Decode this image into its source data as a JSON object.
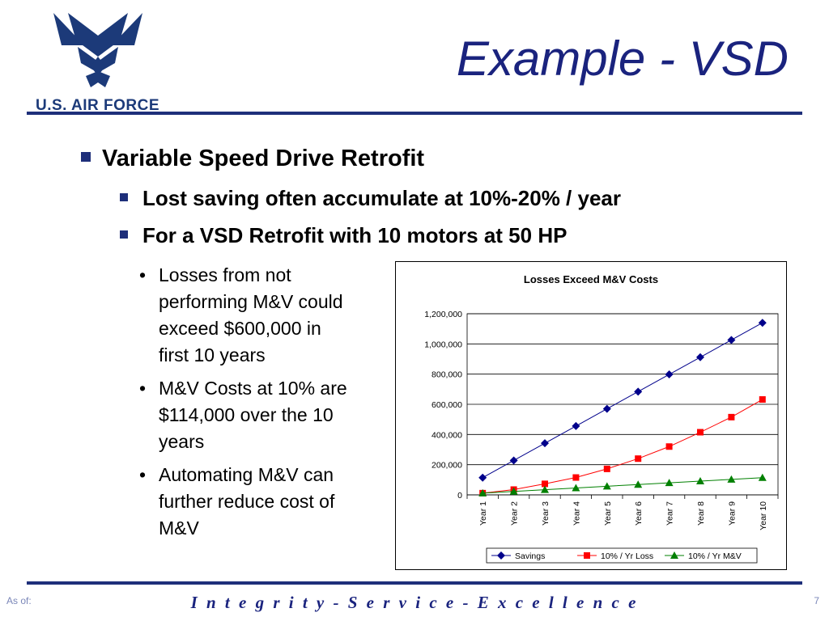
{
  "slide": {
    "logo_text": "U.S. AIR FORCE",
    "title": "Example - VSD",
    "bullet_main": "Variable Speed Drive Retrofit",
    "sub_bullets": [
      "Lost saving often accumulate at 10%-20% / year",
      "For a VSD Retrofit with 10 motors at 50 HP"
    ],
    "points": [
      "Losses from not performing M&V could exceed $600,000 in first 10 years",
      "M&V Costs at 10% are $114,000 over the 10 years",
      "Automating M&V can further reduce cost of M&V"
    ],
    "footer_left": "As of:",
    "footer_motto": "I n t e g r i t y  -  S e r v i c e  -  E x c e l l e n c e",
    "page_number": "7"
  },
  "colors": {
    "brand_blue": "#1e2f7a",
    "savings": "#00008b",
    "loss": "#ff0000",
    "mv": "#008000"
  },
  "chart_data": {
    "type": "line",
    "title": "Losses Exceed M&V Costs",
    "categories": [
      "Year 1",
      "Year 2",
      "Year 3",
      "Year 4",
      "Year 5",
      "Year 6",
      "Year 7",
      "Year 8",
      "Year 9",
      "Year 10"
    ],
    "series": [
      {
        "name": "Savings",
        "marker": "diamond",
        "color": "#00008b",
        "values": [
          114000,
          228000,
          342000,
          456000,
          570000,
          684000,
          798000,
          912000,
          1026000,
          1140000
        ]
      },
      {
        "name": "10% / Yr Loss",
        "marker": "square",
        "color": "#ff0000",
        "values": [
          11400,
          35000,
          73000,
          115000,
          172000,
          240000,
          320000,
          415000,
          515000,
          632000
        ]
      },
      {
        "name": "10% / Yr M&V",
        "marker": "triangle",
        "color": "#008000",
        "values": [
          11400,
          22800,
          34200,
          45600,
          57000,
          68400,
          79800,
          91200,
          102600,
          114000
        ]
      }
    ],
    "ylim": [
      0,
      1200000
    ],
    "yticks": [
      "0",
      "200,000",
      "400,000",
      "600,000",
      "800,000",
      "1,000,000",
      "1,200,000"
    ],
    "legend_position": "bottom",
    "grid": true
  }
}
